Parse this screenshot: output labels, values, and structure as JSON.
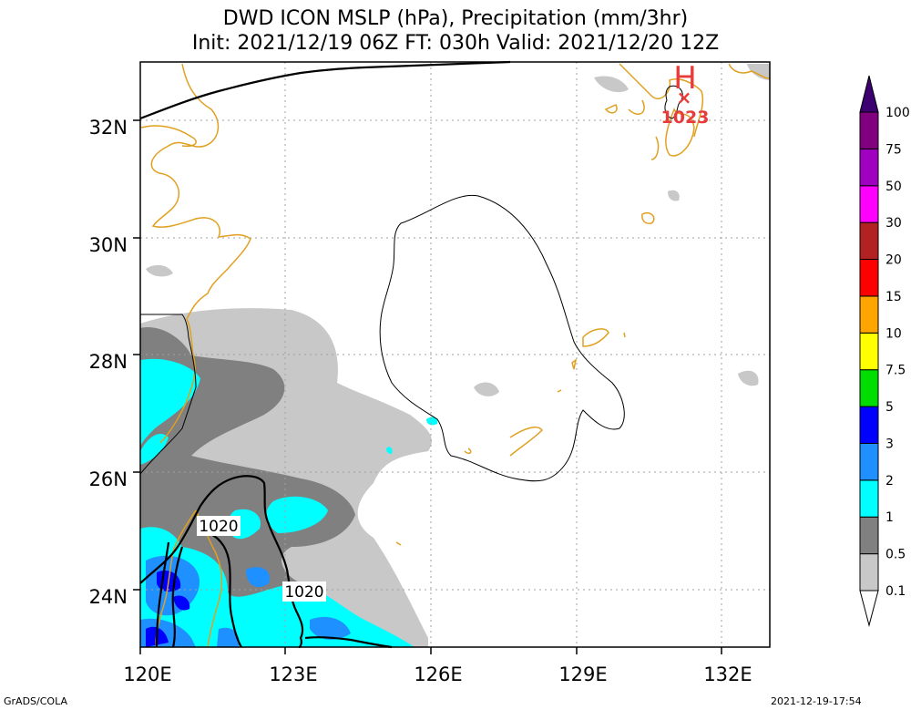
{
  "title": {
    "line1": "DWD ICON MSLP (hPa), Precipitation (mm/3hr)",
    "line2": "Init: 2021/12/19 06Z  FT: 030h  Valid: 2021/12/20 12Z"
  },
  "map": {
    "lon_range": [
      120,
      133
    ],
    "lat_range": [
      23,
      33
    ],
    "x_ticks": [
      "120E",
      "123E",
      "126E",
      "129E",
      "132E"
    ],
    "y_ticks": [
      "24N",
      "26N",
      "28N",
      "30N",
      "32N"
    ],
    "high_center": {
      "symbol": "H",
      "marker": "×",
      "value": "1023"
    },
    "isobar_labels": [
      "1020",
      "1020"
    ]
  },
  "legend": {
    "levels": [
      "0.1",
      "0.5",
      "1",
      "2",
      "3",
      "5",
      "7.5",
      "10",
      "15",
      "20",
      "30",
      "50",
      "75",
      "100"
    ],
    "colors": [
      "#ffffff",
      "#c8c8c8",
      "#808080",
      "#00ffff",
      "#1e90ff",
      "#0000ff",
      "#00dd00",
      "#ffff00",
      "#ffa500",
      "#ff0000",
      "#b22222",
      "#ff00ff",
      "#a000c0",
      "#800080",
      "#3c0070"
    ]
  },
  "footer": {
    "left": "GrADS/COLA",
    "right": "2021-12-19-17:54"
  },
  "colors": {
    "coast": "#e0a020",
    "high": "#e83c3c",
    "grid": "#a0a0a0"
  }
}
